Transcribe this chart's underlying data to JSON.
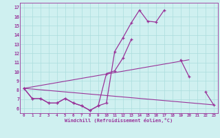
{
  "xlabel": "Windchill (Refroidissement éolien,°C)",
  "x": [
    0,
    1,
    2,
    3,
    4,
    5,
    6,
    7,
    8,
    9,
    10,
    11,
    12,
    13,
    14,
    15,
    16,
    17,
    18,
    19,
    20,
    21,
    22,
    23
  ],
  "line1": [
    8.2,
    7.1,
    7.1,
    6.6,
    6.6,
    7.1,
    6.6,
    6.3,
    5.8,
    6.3,
    6.6,
    12.2,
    13.7,
    15.3,
    16.7,
    15.5,
    15.4,
    16.7,
    null,
    11.3,
    9.5,
    null,
    7.8,
    6.4
  ],
  "line2": [
    8.2,
    7.1,
    7.1,
    6.6,
    6.6,
    7.1,
    6.6,
    6.3,
    5.8,
    6.3,
    9.8,
    10.1,
    11.5,
    13.5,
    null,
    null,
    null,
    null,
    null,
    null,
    null,
    null,
    null,
    null
  ],
  "line3_x": [
    0,
    23
  ],
  "line3_y": [
    8.2,
    6.4
  ],
  "line4_x": [
    0,
    20
  ],
  "line4_y": [
    8.2,
    11.3
  ],
  "ylim": [
    5.5,
    17.5
  ],
  "xlim": [
    -0.5,
    23.5
  ],
  "bg_color": "#cff0f0",
  "line_color": "#993399",
  "grid_color": "#aadddd"
}
